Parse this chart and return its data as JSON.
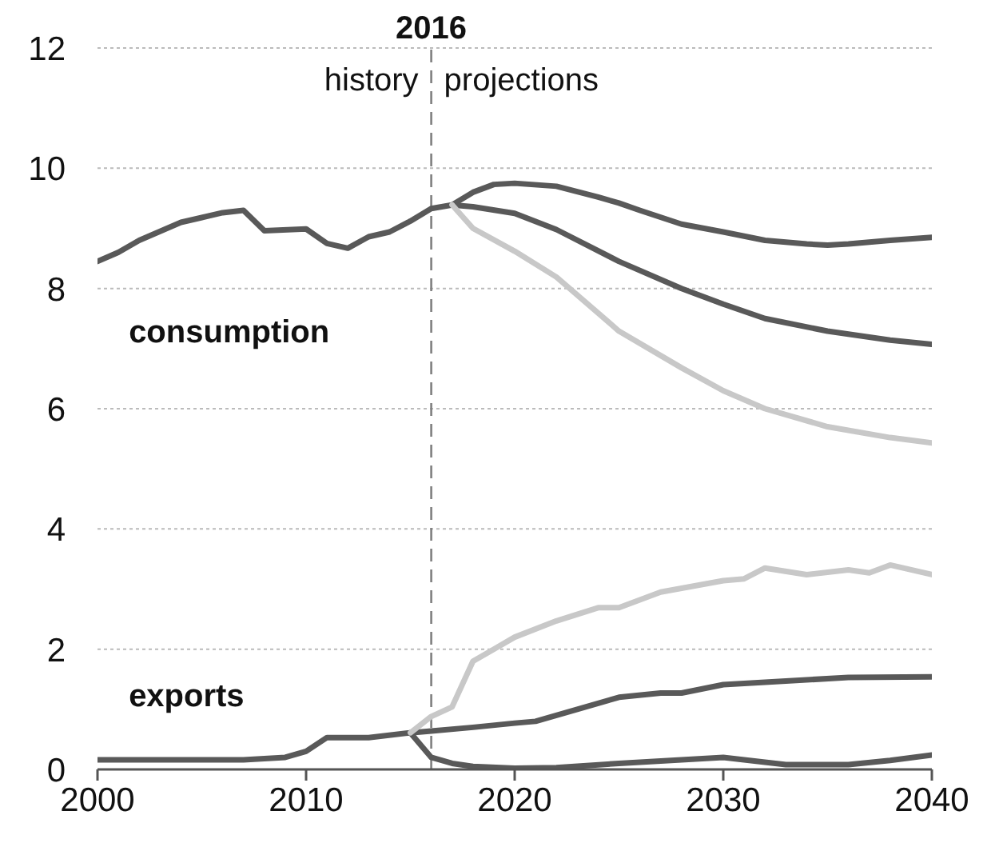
{
  "chart_data": {
    "type": "line",
    "xlim": [
      2000,
      2040
    ],
    "xticks": [
      2000,
      2010,
      2020,
      2030,
      2040
    ],
    "ylim": [
      0,
      12
    ],
    "yticks": [
      0,
      2,
      4,
      6,
      8,
      10,
      12
    ],
    "grid": "y",
    "legend": false,
    "marker": "none",
    "line_style": "solid",
    "ref_lines": [
      {
        "axis": "x",
        "value": 2016,
        "label": "2016",
        "color": "#808080",
        "line_style": "dashed"
      }
    ],
    "annotations": [
      "history",
      "projections",
      "consumption",
      "exports"
    ],
    "series": [
      {
        "color": "#595959",
        "x": [
          2017,
          2018,
          2019,
          2020,
          2022,
          2024,
          2025,
          2026,
          2028,
          2030,
          2032,
          2034,
          2035,
          2036,
          2038,
          2040
        ],
        "values": [
          9.39,
          9.6,
          9.73,
          9.75,
          9.7,
          9.52,
          9.42,
          9.3,
          9.07,
          8.94,
          8.8,
          8.74,
          8.72,
          8.74,
          8.8,
          8.85
        ]
      },
      {
        "color": "#595959",
        "x": [
          2000,
          2001,
          2002,
          2003,
          2004,
          2005,
          2006,
          2007,
          2008,
          2010,
          2011,
          2012,
          2013,
          2014,
          2015,
          2016,
          2017,
          2018,
          2020,
          2022,
          2025,
          2028,
          2030,
          2032,
          2035,
          2038,
          2040
        ],
        "values": [
          8.45,
          8.6,
          8.8,
          8.95,
          9.1,
          9.18,
          9.26,
          9.3,
          8.96,
          8.99,
          8.75,
          8.67,
          8.86,
          8.94,
          9.12,
          9.33,
          9.39,
          9.36,
          9.25,
          8.98,
          8.45,
          8.0,
          7.74,
          7.5,
          7.29,
          7.14,
          7.07
        ]
      },
      {
        "color": "#c8c8c8",
        "x": [
          2017,
          2018,
          2020,
          2022,
          2025,
          2028,
          2030,
          2032,
          2035,
          2038,
          2040
        ],
        "values": [
          9.39,
          9.0,
          8.62,
          8.19,
          7.29,
          6.68,
          6.3,
          6.0,
          5.7,
          5.52,
          5.43
        ]
      },
      {
        "color": "#595959",
        "x": [
          2015,
          2016,
          2017,
          2018,
          2020,
          2022,
          2025,
          2028,
          2030,
          2033,
          2036,
          2038,
          2040
        ],
        "values": [
          0.61,
          0.2,
          0.1,
          0.05,
          0.02,
          0.03,
          0.1,
          0.16,
          0.2,
          0.08,
          0.08,
          0.15,
          0.24
        ]
      },
      {
        "color": "#595959",
        "x": [
          2000,
          2007,
          2009,
          2010,
          2011,
          2013,
          2015,
          2016,
          2018,
          2020,
          2021,
          2023,
          2025,
          2027,
          2028,
          2030,
          2033,
          2036,
          2040
        ],
        "values": [
          0.16,
          0.16,
          0.2,
          0.3,
          0.53,
          0.53,
          0.61,
          0.64,
          0.7,
          0.77,
          0.8,
          1.0,
          1.2,
          1.27,
          1.27,
          1.41,
          1.47,
          1.53,
          1.54
        ]
      },
      {
        "color": "#c8c8c8",
        "x": [
          2015,
          2016,
          2017,
          2018,
          2019,
          2020,
          2022,
          2024,
          2025,
          2027,
          2030,
          2031,
          2032,
          2034,
          2036,
          2037,
          2038,
          2040
        ],
        "values": [
          0.61,
          0.88,
          1.04,
          1.8,
          2.0,
          2.2,
          2.47,
          2.69,
          2.69,
          2.95,
          3.14,
          3.17,
          3.35,
          3.24,
          3.32,
          3.27,
          3.4,
          3.24
        ]
      }
    ]
  }
}
